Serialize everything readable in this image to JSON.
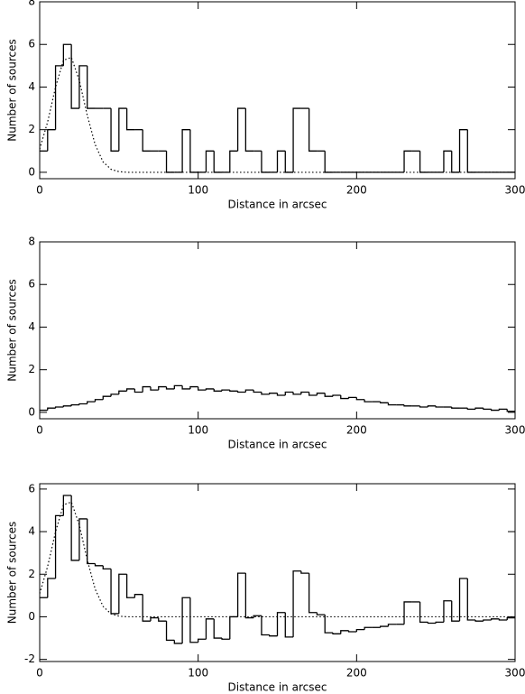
{
  "chart_data": [
    {
      "type": "histogram",
      "xlabel": "Distance in arcsec",
      "ylabel": "Number of sources",
      "bins": [
        0,
        5,
        10,
        15,
        20,
        25,
        30,
        35,
        40,
        45,
        50,
        55,
        60,
        65,
        70,
        75,
        80,
        85,
        90,
        95,
        100,
        105,
        110,
        115,
        120,
        125,
        130,
        135,
        140,
        145,
        150,
        155,
        160,
        165,
        170,
        175,
        180,
        185,
        190,
        195,
        200,
        205,
        210,
        215,
        220,
        225,
        230,
        235,
        240,
        245,
        250,
        255,
        260,
        265,
        270,
        275,
        280,
        285,
        290,
        295,
        300
      ],
      "values": [
        1,
        2,
        5,
        6,
        3,
        5,
        3,
        3,
        3,
        1,
        3,
        2,
        2,
        1,
        1,
        1,
        0,
        0,
        2,
        0,
        0,
        1,
        0,
        0,
        1,
        3,
        1,
        1,
        0,
        0,
        1,
        0,
        3,
        3,
        1,
        1,
        0,
        0,
        0,
        0,
        0,
        0,
        0,
        0,
        0,
        0,
        1,
        1,
        0,
        0,
        0,
        1,
        0,
        2,
        0,
        0,
        0,
        0,
        0,
        0
      ],
      "color": "#000000",
      "fit": {
        "x": [
          0,
          5,
          10,
          15,
          20,
          25,
          30,
          35,
          40,
          45,
          50,
          55,
          300
        ],
        "values": [
          1.09,
          2.36,
          3.99,
          5.26,
          5.39,
          4.31,
          2.68,
          1.3,
          0.49,
          0.14,
          0.03,
          0,
          0
        ],
        "color": "#000000"
      },
      "xlim": [
        0,
        300
      ],
      "ylim": [
        -0.3,
        8
      ],
      "xticks": [
        0,
        100,
        200,
        300
      ],
      "yticks": [
        0,
        2,
        4,
        6,
        8
      ]
    },
    {
      "type": "histogram",
      "xlabel": "Distance in arcsec",
      "ylabel": "Number of sources",
      "bins": [
        0,
        5,
        10,
        15,
        20,
        25,
        30,
        35,
        40,
        45,
        50,
        55,
        60,
        65,
        70,
        75,
        80,
        85,
        90,
        95,
        100,
        105,
        110,
        115,
        120,
        125,
        130,
        135,
        140,
        145,
        150,
        155,
        160,
        165,
        170,
        175,
        180,
        185,
        190,
        195,
        200,
        205,
        210,
        215,
        220,
        225,
        230,
        235,
        240,
        245,
        250,
        255,
        260,
        265,
        270,
        275,
        280,
        285,
        290,
        295,
        300
      ],
      "values": [
        0.1,
        0.2,
        0.25,
        0.3,
        0.35,
        0.4,
        0.5,
        0.6,
        0.75,
        0.85,
        1.0,
        1.1,
        0.95,
        1.2,
        1.05,
        1.2,
        1.1,
        1.25,
        1.1,
        1.2,
        1.05,
        1.1,
        1.0,
        1.05,
        1.0,
        0.95,
        1.05,
        0.95,
        0.85,
        0.9,
        0.8,
        0.95,
        0.85,
        0.95,
        0.8,
        0.9,
        0.75,
        0.8,
        0.65,
        0.7,
        0.6,
        0.5,
        0.5,
        0.45,
        0.35,
        0.35,
        0.3,
        0.3,
        0.25,
        0.3,
        0.25,
        0.25,
        0.2,
        0.2,
        0.15,
        0.2,
        0.15,
        0.1,
        0.15,
        0.05
      ],
      "color": "#000000",
      "xlim": [
        0,
        300
      ],
      "ylim": [
        -0.3,
        8
      ],
      "xticks": [
        0,
        100,
        200,
        300
      ],
      "yticks": [
        0,
        2,
        4,
        6,
        8
      ]
    },
    {
      "type": "histogram",
      "xlabel": "Distance in arcsec",
      "ylabel": "Number of sources",
      "bins": [
        0,
        5,
        10,
        15,
        20,
        25,
        30,
        35,
        40,
        45,
        50,
        55,
        60,
        65,
        70,
        75,
        80,
        85,
        90,
        95,
        100,
        105,
        110,
        115,
        120,
        125,
        130,
        135,
        140,
        145,
        150,
        155,
        160,
        165,
        170,
        175,
        180,
        185,
        190,
        195,
        200,
        205,
        210,
        215,
        220,
        225,
        230,
        235,
        240,
        245,
        250,
        255,
        260,
        265,
        270,
        275,
        280,
        285,
        290,
        295,
        300
      ],
      "values": [
        0.9,
        1.8,
        4.75,
        5.7,
        2.65,
        4.6,
        2.5,
        2.4,
        2.25,
        0.15,
        2.0,
        0.9,
        1.05,
        -0.2,
        -0.05,
        -0.2,
        -1.1,
        -1.25,
        0.9,
        -1.2,
        -1.05,
        -0.1,
        -1.0,
        -1.05,
        0.0,
        2.05,
        -0.05,
        0.05,
        -0.85,
        -0.9,
        0.2,
        -0.95,
        2.15,
        2.05,
        0.2,
        0.1,
        -0.75,
        -0.8,
        -0.65,
        -0.7,
        -0.6,
        -0.5,
        -0.5,
        -0.45,
        -0.35,
        -0.35,
        0.7,
        0.7,
        -0.25,
        -0.3,
        -0.25,
        0.75,
        -0.2,
        1.8,
        -0.15,
        -0.2,
        -0.15,
        -0.1,
        -0.15,
        -0.05
      ],
      "color": "#000000",
      "fit": {
        "x": [
          0,
          5,
          10,
          15,
          20,
          25,
          30,
          35,
          40,
          45,
          50,
          55,
          300
        ],
        "values": [
          1.09,
          2.36,
          3.99,
          5.26,
          5.39,
          4.31,
          2.68,
          1.3,
          0.49,
          0.14,
          0.03,
          0,
          0
        ],
        "color": "#000000"
      },
      "xlim": [
        0,
        300
      ],
      "ylim": [
        -2.1,
        6.25
      ],
      "xticks": [
        0,
        100,
        200,
        300
      ],
      "yticks": [
        -2,
        0,
        2,
        4,
        6
      ]
    }
  ]
}
